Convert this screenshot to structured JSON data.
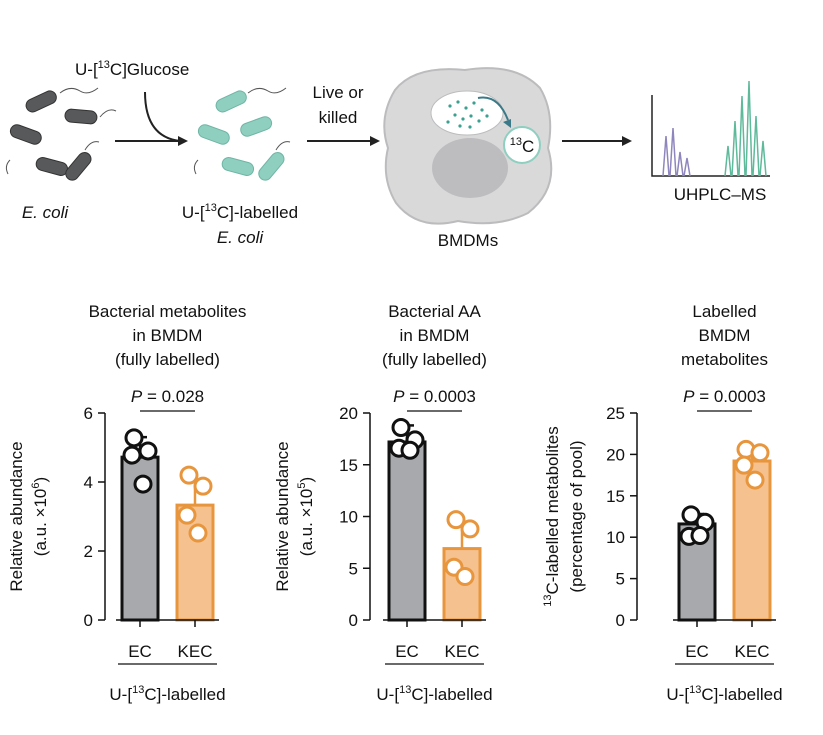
{
  "schematic": {
    "glucose_label": [
      "U-[",
      {
        "sup": "13"
      },
      "C]Glucose"
    ],
    "ecoli": "E. coli",
    "labelled": [
      "U-[",
      {
        "sup": "13"
      },
      "C]-labelled"
    ],
    "labelled_ecoli": "E. coli",
    "live_or_killed": [
      "Live or",
      "killed"
    ],
    "carbon": [
      {
        "sup": "13"
      },
      "C"
    ],
    "bmdms": "BMDMs",
    "uhplc": "UHPLC–MS"
  },
  "chart_data": [
    {
      "type": "bar",
      "title": [
        "Bacterial metabolites",
        "in BMDM",
        "(fully labelled)"
      ],
      "ylabel": [
        [
          "Relative abundance"
        ],
        [
          "(a.u. ×10",
          {
            "sup": "6"
          },
          ")"
        ]
      ],
      "categories": [
        "EC",
        "KEC"
      ],
      "values": [
        4.72,
        3.33
      ],
      "errors": [
        0.58,
        0.7
      ],
      "points": [
        [
          5.28,
          4.9,
          4.78,
          3.94
        ],
        [
          4.2,
          3.88,
          3.04,
          2.52
        ]
      ],
      "colors": [
        "#a7a9ac",
        "#f5c18f"
      ],
      "edge_colors": [
        "#111111",
        "#e8963e"
      ],
      "ylim": [
        0,
        6
      ],
      "yticks": [
        0,
        2,
        4,
        6
      ],
      "p_symbol": "P",
      "p_text": "= 0.028",
      "group_label": [
        "U-[",
        {
          "sup": "13"
        },
        "C]-labelled"
      ]
    },
    {
      "type": "bar",
      "title": [
        "Bacterial AA",
        "in BMDM",
        "(fully labelled)"
      ],
      "ylabel": [
        [
          "Relative abundance"
        ],
        [
          "(a.u. ×10",
          {
            "sup": "5"
          },
          ")"
        ]
      ],
      "categories": [
        "EC",
        "KEC"
      ],
      "values": [
        17.2,
        6.9
      ],
      "errors": [
        1.6,
        2.6
      ],
      "points": [
        [
          18.6,
          17.4,
          16.6,
          16.4
        ],
        [
          9.7,
          8.8,
          5.1,
          4.2
        ]
      ],
      "colors": [
        "#a7a9ac",
        "#f5c18f"
      ],
      "edge_colors": [
        "#111111",
        "#e8963e"
      ],
      "ylim": [
        0,
        20
      ],
      "yticks": [
        0,
        5,
        10,
        15,
        20
      ],
      "p_symbol": "P",
      "p_text": "= 0.0003",
      "group_label": [
        "U-[",
        {
          "sup": "13"
        },
        "C]-labelled"
      ]
    },
    {
      "type": "bar",
      "title": [
        "Labelled",
        "BMDM",
        "metabolites"
      ],
      "ylabel": [
        [
          {
            "sup": "13"
          },
          "C-labelled metabolites"
        ],
        [
          "(percentage of pool)"
        ]
      ],
      "categories": [
        "EC",
        "KEC"
      ],
      "values": [
        11.6,
        19.2
      ],
      "errors": [
        1.2,
        1.7
      ],
      "points": [
        [
          12.7,
          11.8,
          10.1,
          10.2
        ],
        [
          20.6,
          20.2,
          18.7,
          16.9
        ]
      ],
      "colors": [
        "#a7a9ac",
        "#f5c18f"
      ],
      "edge_colors": [
        "#111111",
        "#e8963e"
      ],
      "ylim": [
        0,
        25
      ],
      "yticks": [
        0,
        5,
        10,
        15,
        20,
        25
      ],
      "p_symbol": "P",
      "p_text": "= 0.0003",
      "group_label": [
        "U-[",
        {
          "sup": "13"
        },
        "C]-labelled"
      ]
    }
  ]
}
